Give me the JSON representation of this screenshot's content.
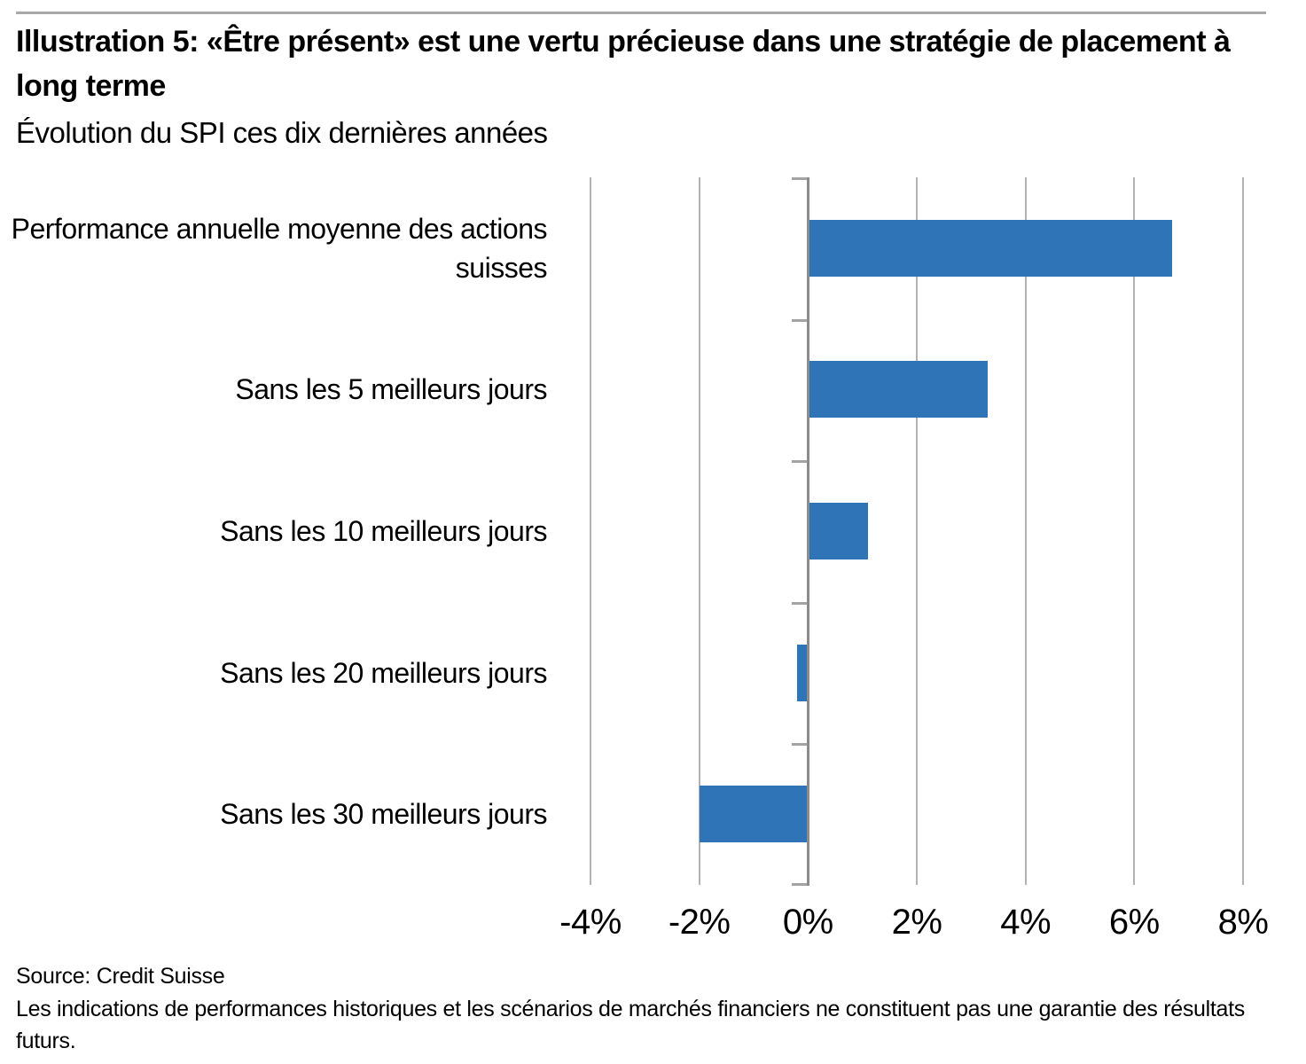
{
  "header": {
    "title": "Illustration 5: «Être présent» est une vertu précieuse dans une stratégie de placement à long terme",
    "subtitle": "Évolution du SPI ces dix dernières années"
  },
  "chart_data": {
    "type": "bar",
    "orientation": "horizontal",
    "categories": [
      "Performance annuelle moyenne des actions suisses",
      "Sans les 5 meilleurs jours",
      "Sans les 10 meilleurs jours",
      "Sans les 20 meilleurs jours",
      "Sans les 30 meilleurs jours"
    ],
    "values": [
      6.7,
      3.3,
      1.1,
      -0.2,
      -2.0
    ],
    "unit": "%",
    "xlim": [
      -4,
      8
    ],
    "x_tick_values": [
      -4,
      -2,
      0,
      2,
      4,
      6,
      8
    ],
    "x_ticks": [
      "-4%",
      "-2%",
      "0%",
      "2%",
      "4%",
      "6%",
      "8%"
    ],
    "grid": true,
    "legend": false,
    "bar_color": "#2E74B6",
    "gridline_color": "#b3b3b3",
    "zero_axis_color": "#8c8c8c"
  },
  "footer": {
    "source": "Source: Credit Suisse",
    "disclaimer": "Les indications de performances historiques et les scénarios de marchés financiers ne constituent pas une garantie des résultats futurs."
  }
}
